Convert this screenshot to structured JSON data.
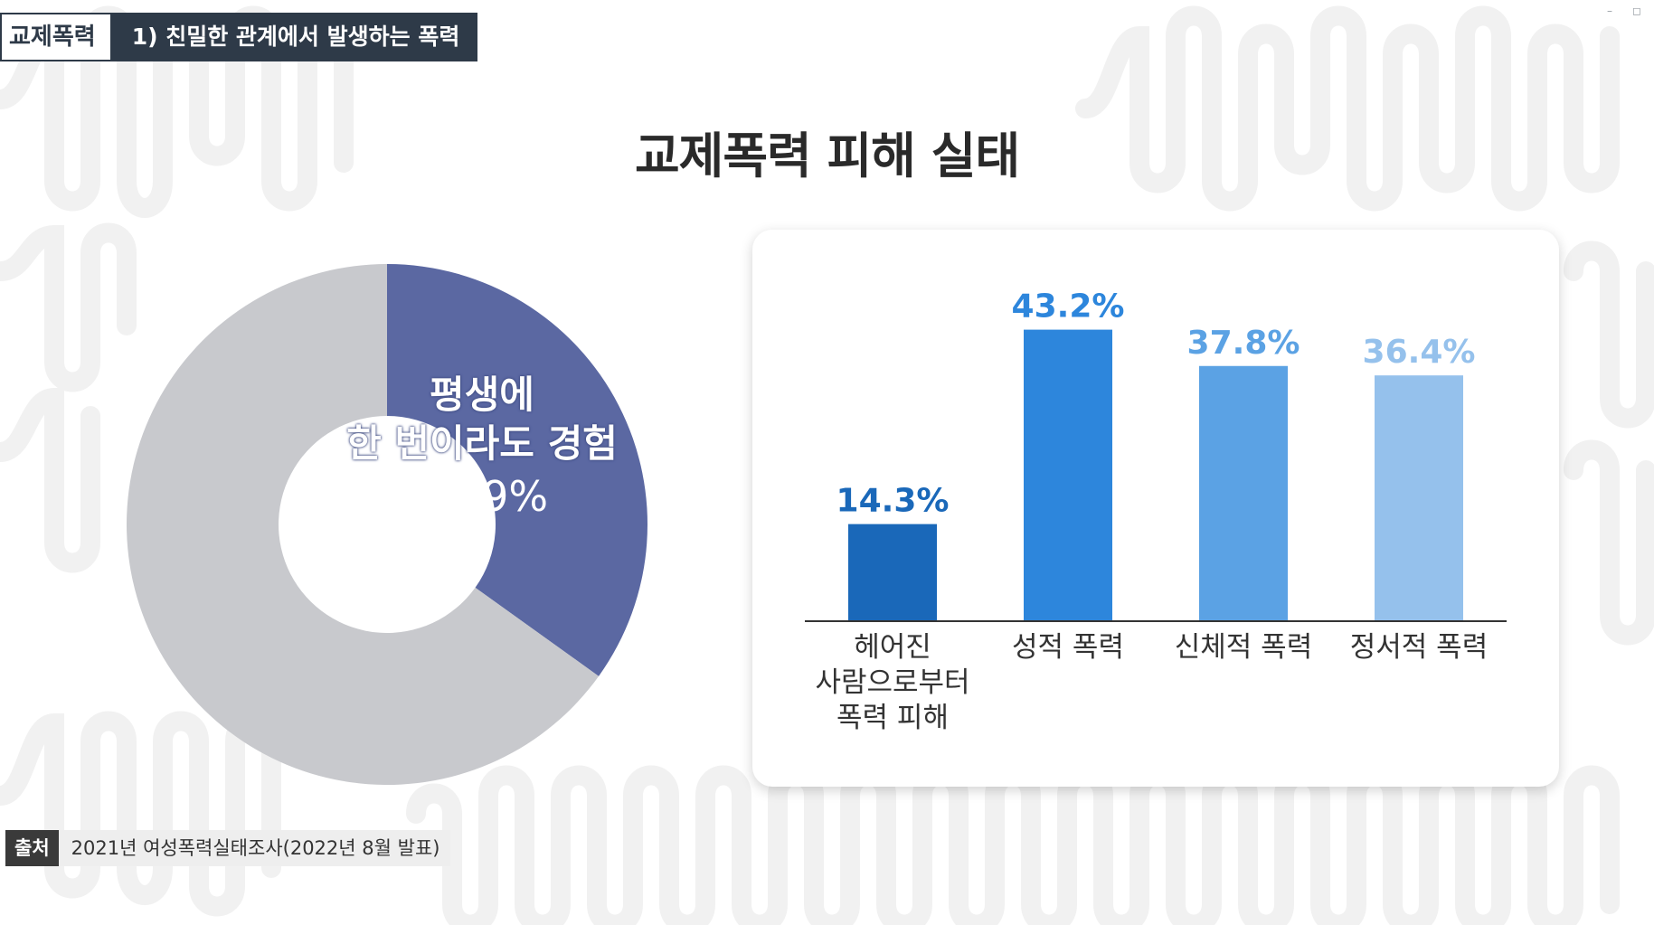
{
  "header": {
    "category": "교제폭력",
    "subtitle": "1) 친밀한 관계에서 발생하는 폭력"
  },
  "title": "교제폭력 피해 실태",
  "window_controls": [
    "–",
    "◻"
  ],
  "donut": {
    "label_line1": "평생에",
    "label_line2": "한 번이라도 경험",
    "value_label": "34.9%"
  },
  "chart_data": [
    {
      "type": "pie",
      "variant": "donut",
      "slices": [
        {
          "label": "평생에 한 번이라도 경험",
          "value": 34.9,
          "color": "#5b68a2"
        },
        {
          "label": "",
          "value": 65.1,
          "color": "#c8c9cd"
        }
      ],
      "value_labels": [
        "34.9%"
      ]
    },
    {
      "type": "bar",
      "categories": [
        [
          "헤어진",
          "사람으로부터",
          "폭력 피해"
        ],
        [
          "성적 폭력"
        ],
        [
          "신체적 폭력"
        ],
        [
          "정서적 폭력"
        ]
      ],
      "values": [
        14.3,
        43.2,
        37.8,
        36.4
      ],
      "value_labels": [
        "14.3%",
        "43.2%",
        "37.8%",
        "36.4%"
      ],
      "bar_colors": [
        "#1a68b9",
        "#2d86dc",
        "#5ba2e4",
        "#95c1ec"
      ],
      "label_colors": [
        "#1a68b9",
        "#2d86dc",
        "#5ba2e4",
        "#95c1ec"
      ],
      "ylim": [
        0,
        50
      ],
      "grid": false
    }
  ],
  "source": {
    "tag": "출처",
    "text": "2021년 여성폭력실태조사(2022년 8월 발표)"
  }
}
